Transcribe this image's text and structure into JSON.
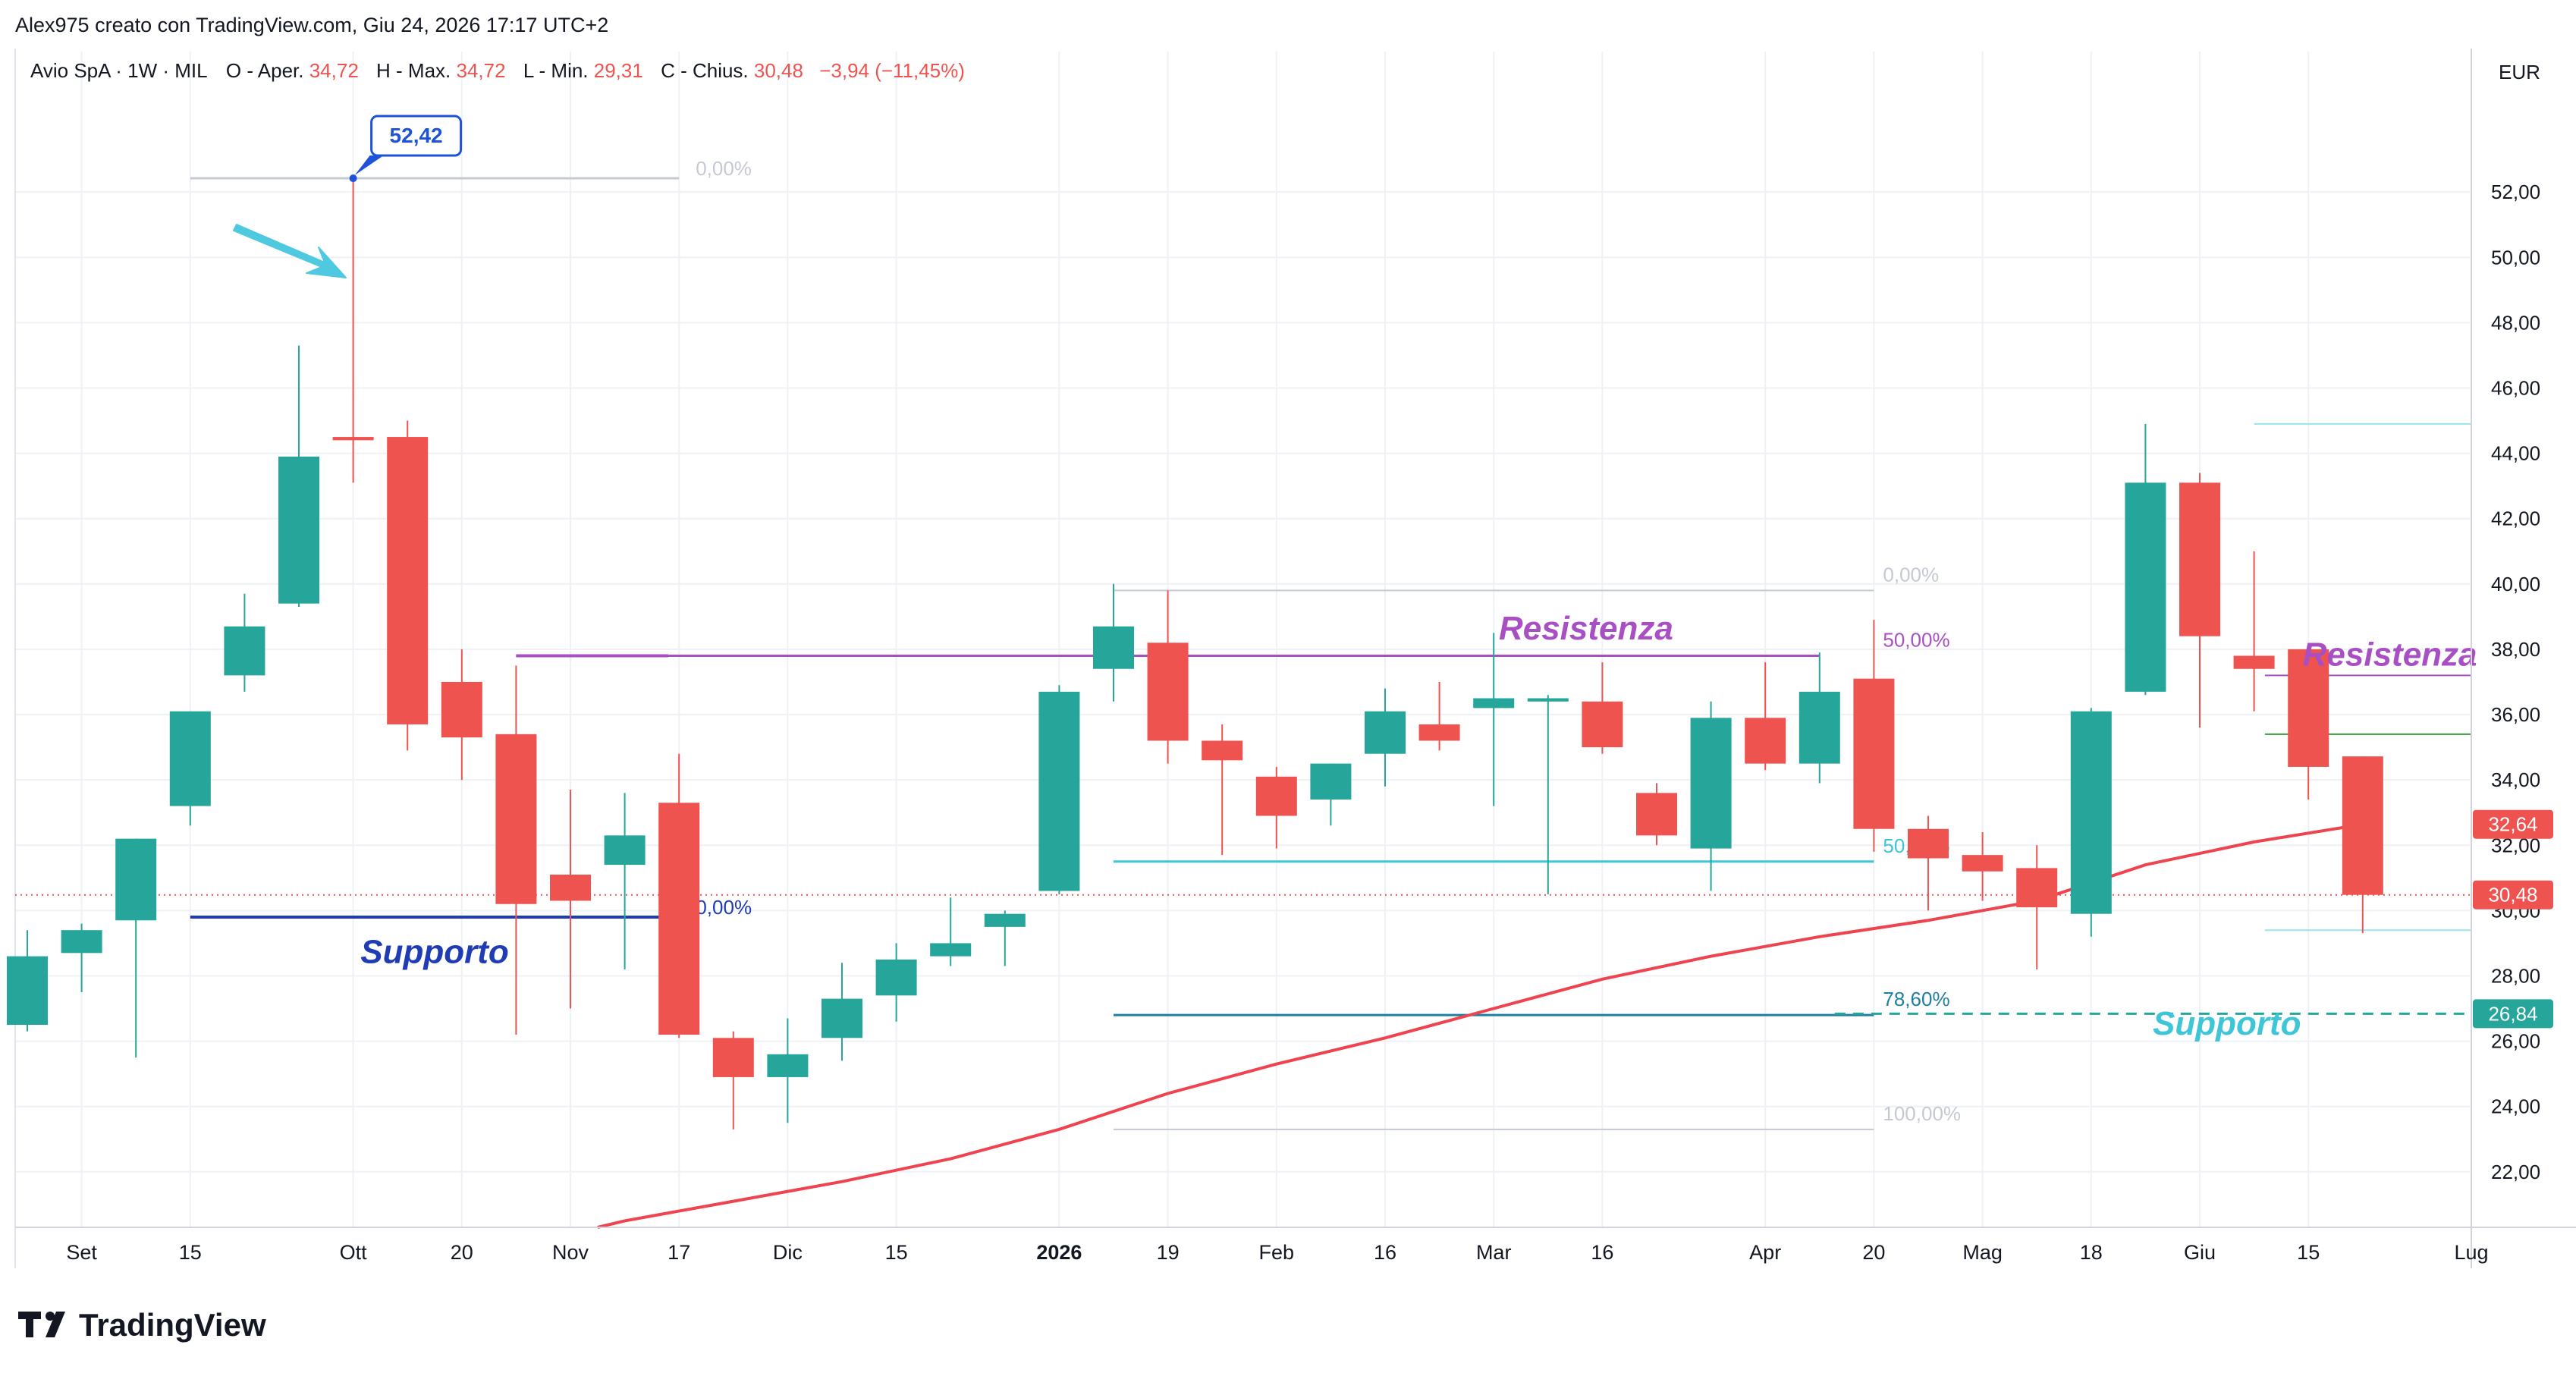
{
  "header": {
    "author_line": "Alex975 creato con TradingView.com, Giu 24, 2026 17:17 UTC+2"
  },
  "legend": {
    "symbol": "Avio SpA · 1W · MIL",
    "open_label": "O - Aper.",
    "open_value": "34,72",
    "high_label": "H - Max.",
    "high_value": "34,72",
    "low_label": "L - Min.",
    "low_value": "29,31",
    "close_label": "C - Chius.",
    "close_value": "30,48",
    "change": "−3,94 (−11,45%)"
  },
  "footer": {
    "brand": "TradingView"
  },
  "colors": {
    "up": "#26a69a",
    "down": "#ef5350",
    "grid": "#eef1f6",
    "axis_text": "#131722",
    "fib_gray": "#c5c9d3",
    "purple": "#a94fc4",
    "navy": "#1e3cb4",
    "cyan": "#3ec6d8",
    "ma": "#ef4450",
    "green_line": "#3f9a3f"
  },
  "chart_data": {
    "type": "candlestick",
    "currency": "EUR",
    "ylim": [
      20.3,
      56.3
    ],
    "y_ticks": [
      {
        "v": 22,
        "label": "22,00"
      },
      {
        "v": 24,
        "label": "24,00"
      },
      {
        "v": 26,
        "label": "26,00"
      },
      {
        "v": 28,
        "label": "28,00"
      },
      {
        "v": 30,
        "label": "30,00"
      },
      {
        "v": 32,
        "label": "32,00"
      },
      {
        "v": 34,
        "label": "34,00"
      },
      {
        "v": 36,
        "label": "36,00"
      },
      {
        "v": 38,
        "label": "38,00"
      },
      {
        "v": 40,
        "label": "40,00"
      },
      {
        "v": 42,
        "label": "42,00"
      },
      {
        "v": 44,
        "label": "44,00"
      },
      {
        "v": 46,
        "label": "46,00"
      },
      {
        "v": 48,
        "label": "48,00"
      },
      {
        "v": 50,
        "label": "50,00"
      },
      {
        "v": 52,
        "label": "52,00"
      }
    ],
    "x_ticks": [
      {
        "i": 1,
        "label": "Set"
      },
      {
        "i": 3,
        "label": "15"
      },
      {
        "i": 6,
        "label": "Ott"
      },
      {
        "i": 8,
        "label": "20"
      },
      {
        "i": 10,
        "label": "Nov"
      },
      {
        "i": 12,
        "label": "17"
      },
      {
        "i": 14,
        "label": "Dic"
      },
      {
        "i": 16,
        "label": "15"
      },
      {
        "i": 19,
        "label": "2026",
        "bold": true
      },
      {
        "i": 21,
        "label": "19"
      },
      {
        "i": 23,
        "label": "Feb"
      },
      {
        "i": 25,
        "label": "16"
      },
      {
        "i": 27,
        "label": "Mar"
      },
      {
        "i": 29,
        "label": "16"
      },
      {
        "i": 32,
        "label": "Apr"
      },
      {
        "i": 34,
        "label": "20"
      },
      {
        "i": 36,
        "label": "Mag"
      },
      {
        "i": 38,
        "label": "18"
      },
      {
        "i": 40,
        "label": "Giu"
      },
      {
        "i": 42,
        "label": "15"
      },
      {
        "i": 45,
        "label": "Lug"
      }
    ],
    "candles": [
      {
        "o": 26.5,
        "h": 29.4,
        "l": 26.3,
        "c": 28.6
      },
      {
        "o": 28.7,
        "h": 29.6,
        "l": 27.5,
        "c": 29.4
      },
      {
        "o": 29.7,
        "h": 32.2,
        "l": 25.5,
        "c": 32.2
      },
      {
        "o": 33.2,
        "h": 36.1,
        "l": 32.6,
        "c": 36.1
      },
      {
        "o": 37.2,
        "h": 39.7,
        "l": 36.7,
        "c": 38.7
      },
      {
        "o": 39.4,
        "h": 47.3,
        "l": 39.3,
        "c": 43.9
      },
      {
        "o": 44.5,
        "h": 52.42,
        "l": 43.1,
        "c": 44.4
      },
      {
        "o": 44.5,
        "h": 45.0,
        "l": 34.9,
        "c": 35.7
      },
      {
        "o": 37.0,
        "h": 38.0,
        "l": 34.0,
        "c": 35.3
      },
      {
        "o": 35.4,
        "h": 37.5,
        "l": 26.2,
        "c": 30.2
      },
      {
        "o": 31.1,
        "h": 33.7,
        "l": 27.0,
        "c": 30.3
      },
      {
        "o": 31.4,
        "h": 33.6,
        "l": 28.2,
        "c": 32.3
      },
      {
        "o": 33.3,
        "h": 34.8,
        "l": 26.1,
        "c": 26.2
      },
      {
        "o": 26.1,
        "h": 26.3,
        "l": 23.3,
        "c": 24.9
      },
      {
        "o": 24.9,
        "h": 26.7,
        "l": 23.5,
        "c": 25.6
      },
      {
        "o": 26.1,
        "h": 28.4,
        "l": 25.4,
        "c": 27.3
      },
      {
        "o": 27.4,
        "h": 29.0,
        "l": 26.6,
        "c": 28.5
      },
      {
        "o": 28.6,
        "h": 30.4,
        "l": 28.3,
        "c": 29.0
      },
      {
        "o": 29.5,
        "h": 30.0,
        "l": 28.3,
        "c": 29.9
      },
      {
        "o": 30.6,
        "h": 36.9,
        "l": 30.5,
        "c": 36.7
      },
      {
        "o": 37.4,
        "h": 40.0,
        "l": 36.4,
        "c": 38.7
      },
      {
        "o": 38.2,
        "h": 39.8,
        "l": 34.5,
        "c": 35.2
      },
      {
        "o": 35.2,
        "h": 35.7,
        "l": 31.7,
        "c": 34.6
      },
      {
        "o": 34.1,
        "h": 34.4,
        "l": 31.9,
        "c": 32.9
      },
      {
        "o": 33.4,
        "h": 34.5,
        "l": 32.6,
        "c": 34.5
      },
      {
        "o": 34.8,
        "h": 36.8,
        "l": 33.8,
        "c": 36.1
      },
      {
        "o": 35.7,
        "h": 37.0,
        "l": 34.9,
        "c": 35.2
      },
      {
        "o": 36.2,
        "h": 38.5,
        "l": 33.2,
        "c": 36.5
      },
      {
        "o": 36.4,
        "h": 36.6,
        "l": 30.5,
        "c": 36.5
      },
      {
        "o": 36.4,
        "h": 37.6,
        "l": 34.8,
        "c": 35.0
      },
      {
        "o": 33.6,
        "h": 33.9,
        "l": 32.0,
        "c": 32.3
      },
      {
        "o": 31.9,
        "h": 36.4,
        "l": 30.6,
        "c": 35.9
      },
      {
        "o": 35.9,
        "h": 37.6,
        "l": 34.3,
        "c": 34.5
      },
      {
        "o": 34.5,
        "h": 37.9,
        "l": 33.9,
        "c": 36.7
      },
      {
        "o": 37.1,
        "h": 38.9,
        "l": 31.8,
        "c": 32.5
      },
      {
        "o": 32.5,
        "h": 32.9,
        "l": 30.0,
        "c": 31.6
      },
      {
        "o": 31.7,
        "h": 32.4,
        "l": 30.3,
        "c": 31.2
      },
      {
        "o": 31.3,
        "h": 32.0,
        "l": 28.2,
        "c": 30.1
      },
      {
        "o": 29.9,
        "h": 36.2,
        "l": 29.2,
        "c": 36.1
      },
      {
        "o": 36.7,
        "h": 44.9,
        "l": 36.6,
        "c": 43.1
      },
      {
        "o": 43.1,
        "h": 43.4,
        "l": 35.6,
        "c": 38.4
      },
      {
        "o": 37.8,
        "h": 41.0,
        "l": 36.1,
        "c": 37.4
      },
      {
        "o": 38.0,
        "h": 38.1,
        "l": 33.4,
        "c": 34.4
      },
      {
        "o": 34.72,
        "h": 34.72,
        "l": 29.31,
        "c": 30.48
      }
    ],
    "moving_average": [
      {
        "x": 10.5,
        "y": 20.3
      },
      {
        "x": 11,
        "y": 20.5
      },
      {
        "x": 13,
        "y": 21.1
      },
      {
        "x": 15,
        "y": 21.7
      },
      {
        "x": 17,
        "y": 22.4
      },
      {
        "x": 19,
        "y": 23.3
      },
      {
        "x": 21,
        "y": 24.4
      },
      {
        "x": 23,
        "y": 25.3
      },
      {
        "x": 25,
        "y": 26.1
      },
      {
        "x": 27,
        "y": 27.0
      },
      {
        "x": 29,
        "y": 27.9
      },
      {
        "x": 31,
        "y": 28.6
      },
      {
        "x": 33,
        "y": 29.2
      },
      {
        "x": 35,
        "y": 29.7
      },
      {
        "x": 37,
        "y": 30.3
      },
      {
        "x": 39,
        "y": 31.4
      },
      {
        "x": 41,
        "y": 32.1
      },
      {
        "x": 43,
        "y": 32.64
      }
    ],
    "fib_upper": [
      {
        "i_start": 3,
        "i_end": 12,
        "v": 52.42,
        "label": "0,00%",
        "color": "#c5c9d3"
      },
      {
        "i_start": 9,
        "i_end": 11.8,
        "v": 37.8,
        "label": "",
        "color": "#a94fc4"
      },
      {
        "i_start": 3,
        "i_end": 11.8,
        "v": 29.8,
        "label": "50,00%",
        "color": "#1e3cb4"
      }
    ],
    "fib_lower": [
      {
        "i_start": 20,
        "i_end": 34,
        "v": 39.8,
        "label": "0,00%",
        "color": "#c5c9d3",
        "width": 2
      },
      {
        "i_start": 9,
        "i_end": 33,
        "v": 37.8,
        "label": "50,00%",
        "color": "#a94fc4",
        "width": 3
      },
      {
        "i_start": 20,
        "i_end": 34,
        "v": 31.5,
        "label": "50,00%",
        "color": "#3ec6d8",
        "width": 3
      },
      {
        "i_start": 20,
        "i_end": 34,
        "v": 26.8,
        "label": "78,60%",
        "color": "#1e7fa0",
        "width": 3
      },
      {
        "i_start": 20,
        "i_end": 34,
        "v": 23.3,
        "label": "100,00%",
        "color": "#c5c9d3",
        "width": 2
      }
    ],
    "right_lines": [
      {
        "i_start": 41,
        "i_end": 45,
        "v": 44.9,
        "color": "#9be3ea",
        "width": 2
      },
      {
        "i_start": 41.2,
        "i_end": 45,
        "v": 37.2,
        "color": "#a94fc4",
        "width": 2
      },
      {
        "i_start": 41.2,
        "i_end": 45,
        "v": 35.4,
        "color": "#3f9a3f",
        "width": 2
      },
      {
        "i_start": 41.2,
        "i_end": 45,
        "v": 29.4,
        "color": "#9be3ea",
        "width": 2
      }
    ],
    "support_dashed": {
      "v": 26.84,
      "i_start": 33,
      "i_end": 45,
      "color": "#26a69a"
    },
    "last_price_dotted": {
      "v": 30.48,
      "color": "#ef5350"
    },
    "annotations": [
      {
        "text": "Supporto",
        "i": 7.5,
        "v": 28.4,
        "color": "#1e3cb4"
      },
      {
        "text": "Resistenza",
        "i": 28.7,
        "v": 38.3,
        "color": "#a94fc4"
      },
      {
        "text": "Resistenza",
        "i": 43.5,
        "v": 37.5,
        "color": "#a94fc4"
      },
      {
        "text": "Supporto",
        "i": 40.5,
        "v": 26.2,
        "color": "#3ec6d8"
      }
    ],
    "high_callout": {
      "label": "52,42",
      "i": 6,
      "v": 52.42
    },
    "price_tags": [
      {
        "label": "32,64",
        "v": 32.64,
        "bg": "#ef5350"
      },
      {
        "label": "30,48",
        "v": 30.48,
        "bg": "#ef5350"
      },
      {
        "label": "26,84",
        "v": 26.84,
        "bg": "#26a69a"
      }
    ]
  }
}
